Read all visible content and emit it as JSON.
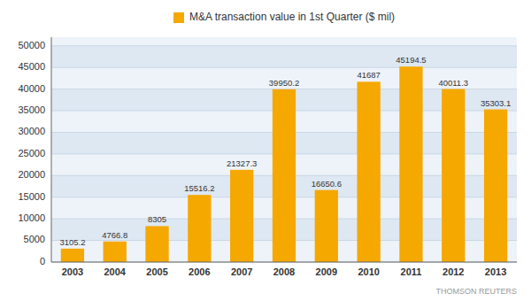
{
  "chart_data": {
    "type": "bar",
    "categories": [
      "2003",
      "2004",
      "2005",
      "2006",
      "2007",
      "2008",
      "2009",
      "2010",
      "2011",
      "2012",
      "2013"
    ],
    "series": [
      {
        "name": "M&A transaction value in 1st Quarter ($ mil)",
        "color": "#F5A800",
        "values": [
          3105.2,
          4766.8,
          8305,
          15516.2,
          21327.3,
          39950.2,
          16650.6,
          41687,
          45194.5,
          40011.3,
          35303.1
        ]
      }
    ],
    "ylim": [
      0,
      52000
    ],
    "yticks": [
      0,
      5000,
      10000,
      15000,
      20000,
      25000,
      30000,
      35000,
      40000,
      45000,
      50000
    ],
    "grid": true,
    "legend": "top",
    "data_labels": true,
    "annotations": [
      "THOMSON REUTERS"
    ]
  }
}
